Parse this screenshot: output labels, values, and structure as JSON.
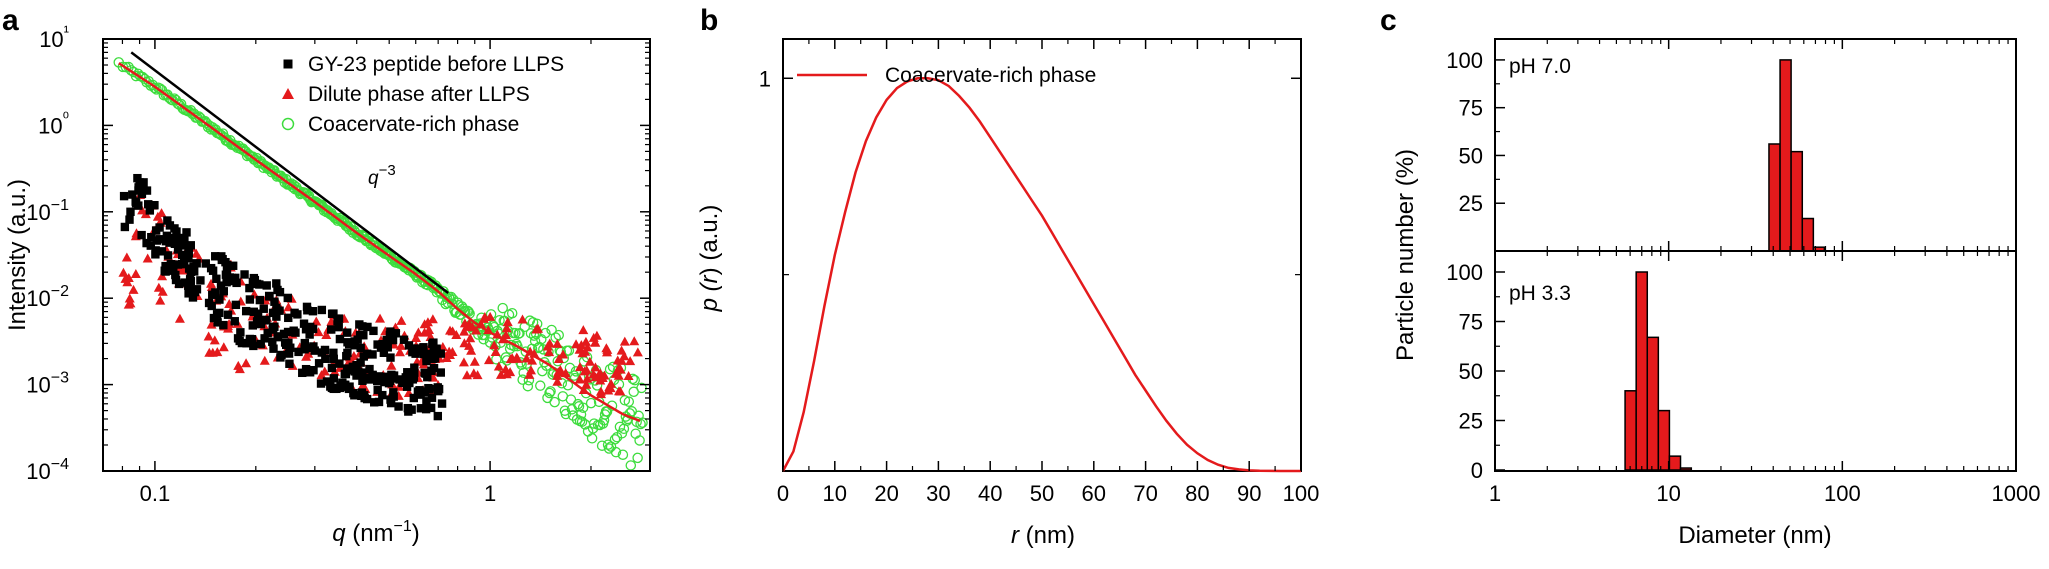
{
  "chart_data": [
    {
      "panel": "a",
      "type": "scatter",
      "xlabel": "q (nm⁻¹)",
      "ylabel": "Intensity (a.u.)",
      "xscale": "log",
      "yscale": "log",
      "xlim": [
        0.07,
        3.0
      ],
      "ylim": [
        0.0001,
        10
      ],
      "xticks": [
        "0.1",
        "1"
      ],
      "yticks": [
        "10−4",
        "10−3",
        "10−2",
        "10−1",
        "10⁰",
        "10¹"
      ],
      "legend_position": "top-right",
      "annotation": "q−3",
      "power_law_line": {
        "x": [
          0.085,
          0.75
        ],
        "y": [
          7.0,
          0.0115
        ]
      },
      "series": [
        {
          "name": "GY-23 peptide before LLPS",
          "marker": "square",
          "color": "#000000",
          "x": [
            0.08,
            0.09,
            0.1,
            0.12,
            0.15,
            0.2,
            0.25,
            0.3,
            0.4,
            0.5,
            0.6,
            0.7
          ],
          "y": [
            0.15,
            0.12,
            0.06,
            0.03,
            0.012,
            0.007,
            0.005,
            0.003,
            0.002,
            0.0015,
            0.0013,
            0.0012
          ]
        },
        {
          "name": "Dilute phase after LLPS",
          "marker": "triangle",
          "color": "#e41a1c",
          "x": [
            0.08,
            0.09,
            0.1,
            0.12,
            0.15,
            0.2,
            0.3,
            0.5,
            0.8,
            1.0,
            1.5,
            2.0,
            2.5
          ],
          "y": [
            0.02,
            0.05,
            0.04,
            0.02,
            0.008,
            0.005,
            0.003,
            0.002,
            0.0025,
            0.003,
            0.0025,
            0.0018,
            0.0015
          ]
        },
        {
          "name": "Coacervate-rich phase",
          "marker": "circle-open",
          "color": "#3ddc3d",
          "fit_color": "#e41a1c",
          "x": [
            0.075,
            0.1,
            0.15,
            0.2,
            0.3,
            0.4,
            0.5,
            0.6,
            0.7,
            0.8,
            0.9,
            1.0,
            1.2,
            1.5,
            2.0,
            2.5,
            2.8
          ],
          "y": [
            5.8,
            2.8,
            0.9,
            0.4,
            0.13,
            0.057,
            0.031,
            0.019,
            0.012,
            0.0075,
            0.0052,
            0.004,
            0.0028,
            0.0017,
            0.00075,
            0.00045,
            0.00038
          ]
        }
      ]
    },
    {
      "panel": "b",
      "type": "line",
      "xlabel": "r (nm)",
      "ylabel": "p (r) (a.u.)",
      "xlim": [
        0,
        100
      ],
      "ylim": [
        0,
        1.1
      ],
      "xticks": [
        0,
        10,
        20,
        30,
        40,
        50,
        60,
        70,
        80,
        90,
        100
      ],
      "yticks": [
        "1"
      ],
      "legend_position": "top-left",
      "series": [
        {
          "name": "Coacervate-rich phase",
          "color": "#e41a1c",
          "x": [
            0,
            2,
            4,
            6,
            8,
            10,
            12,
            14,
            16,
            18,
            20,
            22,
            24,
            26,
            28,
            30,
            32,
            34,
            36,
            38,
            40,
            42,
            44,
            46,
            48,
            50,
            52,
            54,
            56,
            58,
            60,
            62,
            64,
            66,
            68,
            70,
            72,
            74,
            76,
            78,
            80,
            82,
            84,
            86,
            88,
            90,
            92,
            94,
            96,
            98,
            100
          ],
          "y": [
            0,
            0.05,
            0.15,
            0.28,
            0.42,
            0.55,
            0.66,
            0.76,
            0.84,
            0.9,
            0.945,
            0.975,
            0.992,
            1.0,
            1.0,
            0.995,
            0.98,
            0.955,
            0.925,
            0.89,
            0.85,
            0.81,
            0.77,
            0.73,
            0.69,
            0.65,
            0.605,
            0.56,
            0.515,
            0.47,
            0.425,
            0.38,
            0.335,
            0.29,
            0.245,
            0.205,
            0.165,
            0.128,
            0.095,
            0.067,
            0.045,
            0.028,
            0.016,
            0.008,
            0.004,
            0.0015,
            0.0005,
            0.0002,
            0,
            0,
            0
          ]
        }
      ]
    },
    {
      "panel": "c",
      "type": "bar",
      "xlabel": "Diameter (nm)",
      "ylabel": "Particle number (%)",
      "xscale": "log",
      "xlim": [
        1,
        1000
      ],
      "xticks": [
        "1",
        "10",
        "100",
        "1000"
      ],
      "bar_color": "#e41a1c",
      "subplots": [
        {
          "label": "pH 7.0",
          "ylim": [
            0,
            110
          ],
          "yticks": [
            25,
            50,
            75,
            100
          ],
          "bins": [
            37.8,
            43.8,
            50.7,
            58.8,
            68.1,
            78.8,
            91.3
          ],
          "values": [
            56,
            100,
            52,
            17,
            2,
            0
          ]
        },
        {
          "label": "pH 3.3",
          "ylim": [
            0,
            100
          ],
          "yticks": [
            0,
            25,
            50,
            75,
            100
          ],
          "bins": [
            5.61,
            6.5,
            7.53,
            8.72,
            10.1,
            11.7,
            13.5,
            15.7
          ],
          "values": [
            40,
            100,
            67,
            30,
            7,
            1,
            0
          ]
        }
      ]
    }
  ]
}
